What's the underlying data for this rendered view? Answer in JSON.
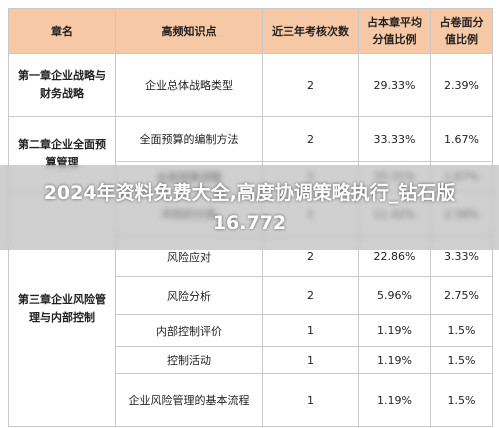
{
  "header": {
    "columns": [
      "章名",
      "高频知识点",
      "近三年考核次数",
      "占本章平均分值比例",
      "占卷面分值比例"
    ]
  },
  "chapters": [
    {
      "name": "第一章企业战略与财务战略",
      "items": [
        [
          "企业总体战略类型",
          "2",
          "29.33%",
          "2.39%"
        ]
      ]
    },
    {
      "name": "第二章企业全面预算管理",
      "items": [
        [
          "全面预算的编制方法",
          "2",
          "33.33%",
          "1.67%"
        ],
        [
          "全面预算调整",
          "2",
          "33.31%",
          "1.67%"
        ]
      ]
    },
    {
      "name": "第三章企业风险管理与内部控制",
      "items": [
        [
          "风险的分类",
          "1",
          "11.42%",
          "2.58%"
        ],
        [
          "风险应对",
          "2",
          "22.86%",
          "3.33%"
        ],
        [
          "风险分析",
          "2",
          "5.96%",
          "2.75%"
        ],
        [
          "内部控制评价",
          "1",
          "1.19%",
          "1.5%"
        ],
        [
          "控制活动",
          "1",
          "1.19%",
          "1.5%"
        ],
        [
          "企业风险管理的基本流程",
          "1",
          "1.19%",
          "1.5%"
        ]
      ]
    }
  ],
  "overlay": {
    "text": "2024年资料免费大全,高度协调策略执行_钻石版16.772"
  }
}
